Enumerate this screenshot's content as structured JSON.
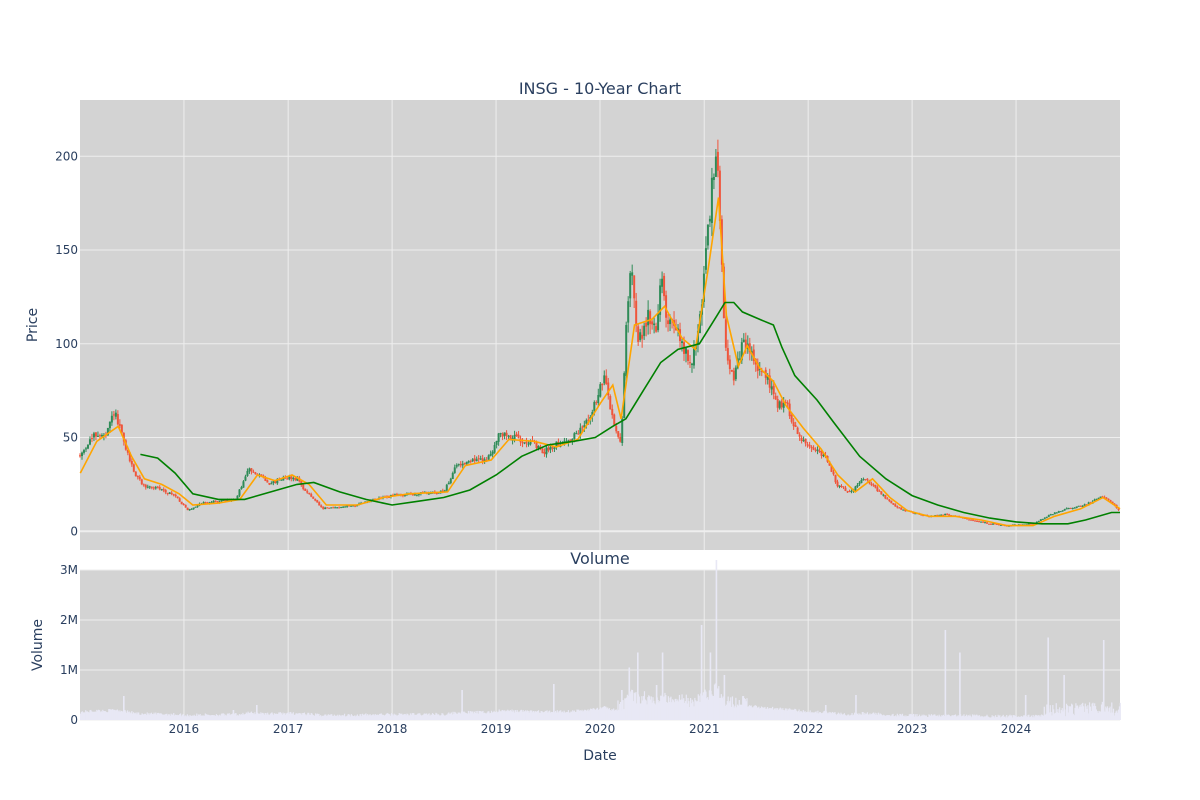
{
  "chart_data": [
    {
      "type": "candlestick",
      "title": "INSG - 10-Year Chart",
      "ylabel": "Price",
      "ylim": [
        -10,
        230
      ],
      "yticks": [
        0,
        50,
        100,
        150,
        200
      ],
      "x_range": [
        "2015-01-01",
        "2024-12-31"
      ],
      "grid": true,
      "colors": {
        "up": "#2e8b57",
        "down": "#ef553b",
        "ma_short": "#ffa500",
        "ma_long": "#008000",
        "plot_bg": "#d3d3d3",
        "grid": "#eeeeee"
      },
      "price_points": [
        [
          "2015-01-02",
          40
        ],
        [
          "2015-02-01",
          48
        ],
        [
          "2015-03-01",
          52
        ],
        [
          "2015-04-01",
          50
        ],
        [
          "2015-05-01",
          64
        ],
        [
          "2015-05-20",
          55
        ],
        [
          "2015-06-15",
          42
        ],
        [
          "2015-07-15",
          30
        ],
        [
          "2015-08-15",
          24
        ],
        [
          "2015-10-01",
          23
        ],
        [
          "2015-12-01",
          19
        ],
        [
          "2016-01-15",
          11
        ],
        [
          "2016-03-01",
          15
        ],
        [
          "2016-05-01",
          16
        ],
        [
          "2016-07-01",
          17
        ],
        [
          "2016-08-15",
          33
        ],
        [
          "2016-09-15",
          31
        ],
        [
          "2016-11-01",
          25
        ],
        [
          "2016-12-15",
          29
        ],
        [
          "2017-02-01",
          28
        ],
        [
          "2017-03-01",
          22
        ],
        [
          "2017-05-01",
          12
        ],
        [
          "2017-07-01",
          13
        ],
        [
          "2017-09-01",
          14
        ],
        [
          "2017-11-01",
          17
        ],
        [
          "2018-01-01",
          19
        ],
        [
          "2018-04-01",
          20
        ],
        [
          "2018-07-01",
          21
        ],
        [
          "2018-08-15",
          35
        ],
        [
          "2018-10-01",
          38
        ],
        [
          "2018-12-01",
          38
        ],
        [
          "2019-01-15",
          52
        ],
        [
          "2019-03-01",
          50
        ],
        [
          "2019-05-01",
          48
        ],
        [
          "2019-06-15",
          42
        ],
        [
          "2019-08-01",
          47
        ],
        [
          "2019-09-15",
          48
        ],
        [
          "2019-11-01",
          55
        ],
        [
          "2019-12-15",
          68
        ],
        [
          "2020-01-15",
          82
        ],
        [
          "2020-02-15",
          60
        ],
        [
          "2020-03-15",
          45
        ],
        [
          "2020-04-01",
          110
        ],
        [
          "2020-04-20",
          140
        ],
        [
          "2020-05-15",
          100
        ],
        [
          "2020-06-15",
          115
        ],
        [
          "2020-07-15",
          108
        ],
        [
          "2020-08-05",
          140
        ],
        [
          "2020-08-20",
          115
        ],
        [
          "2020-10-01",
          105
        ],
        [
          "2020-11-15",
          88
        ],
        [
          "2020-12-15",
          110
        ],
        [
          "2021-01-15",
          160
        ],
        [
          "2021-02-10",
          205
        ],
        [
          "2021-02-25",
          170
        ],
        [
          "2021-03-15",
          100
        ],
        [
          "2021-04-15",
          80
        ],
        [
          "2021-05-15",
          100
        ],
        [
          "2021-06-15",
          95
        ],
        [
          "2021-07-15",
          85
        ],
        [
          "2021-08-15",
          80
        ],
        [
          "2021-09-15",
          68
        ],
        [
          "2021-10-15",
          68
        ],
        [
          "2021-12-01",
          50
        ],
        [
          "2022-01-15",
          45
        ],
        [
          "2022-03-01",
          40
        ],
        [
          "2022-04-15",
          24
        ],
        [
          "2022-06-01",
          21
        ],
        [
          "2022-07-15",
          29
        ],
        [
          "2022-09-01",
          22
        ],
        [
          "2022-11-01",
          13
        ],
        [
          "2023-01-01",
          10
        ],
        [
          "2023-03-01",
          8
        ],
        [
          "2023-05-01",
          9
        ],
        [
          "2023-07-01",
          7
        ],
        [
          "2023-10-01",
          4
        ],
        [
          "2023-12-01",
          3
        ],
        [
          "2024-03-01",
          4
        ],
        [
          "2024-05-01",
          9
        ],
        [
          "2024-07-01",
          12
        ],
        [
          "2024-09-01",
          14
        ],
        [
          "2024-11-01",
          19
        ],
        [
          "2024-12-31",
          11
        ]
      ],
      "ma_short": [
        [
          "2015-01-02",
          31
        ],
        [
          "2015-03-01",
          48
        ],
        [
          "2015-05-15",
          56
        ],
        [
          "2015-07-01",
          40
        ],
        [
          "2015-08-15",
          28
        ],
        [
          "2015-10-15",
          25
        ],
        [
          "2015-12-15",
          20
        ],
        [
          "2016-02-01",
          14
        ],
        [
          "2016-05-01",
          15
        ],
        [
          "2016-07-15",
          17
        ],
        [
          "2016-09-15",
          30
        ],
        [
          "2016-11-15",
          27
        ],
        [
          "2017-01-15",
          30
        ],
        [
          "2017-03-15",
          25
        ],
        [
          "2017-05-15",
          14
        ],
        [
          "2017-09-01",
          14
        ],
        [
          "2017-12-01",
          18
        ],
        [
          "2018-03-01",
          20
        ],
        [
          "2018-07-15",
          21
        ],
        [
          "2018-09-15",
          35
        ],
        [
          "2018-12-15",
          38
        ],
        [
          "2019-02-15",
          49
        ],
        [
          "2019-05-15",
          48
        ],
        [
          "2019-08-01",
          45
        ],
        [
          "2019-10-15",
          49
        ],
        [
          "2020-01-01",
          68
        ],
        [
          "2020-02-15",
          78
        ],
        [
          "2020-03-15",
          60
        ],
        [
          "2020-05-01",
          110
        ],
        [
          "2020-07-01",
          113
        ],
        [
          "2020-08-15",
          120
        ],
        [
          "2020-10-15",
          103
        ],
        [
          "2020-12-01",
          97
        ],
        [
          "2021-01-15",
          140
        ],
        [
          "2021-02-20",
          178
        ],
        [
          "2021-03-20",
          115
        ],
        [
          "2021-05-01",
          88
        ],
        [
          "2021-06-01",
          99
        ],
        [
          "2021-07-15",
          87
        ],
        [
          "2021-09-01",
          80
        ],
        [
          "2021-10-15",
          67
        ],
        [
          "2021-12-15",
          55
        ],
        [
          "2022-02-15",
          44
        ],
        [
          "2022-04-15",
          30
        ],
        [
          "2022-06-15",
          21
        ],
        [
          "2022-08-15",
          28
        ],
        [
          "2022-10-15",
          18
        ],
        [
          "2022-12-15",
          11
        ],
        [
          "2023-03-01",
          8
        ],
        [
          "2023-06-01",
          8
        ],
        [
          "2023-09-01",
          6
        ],
        [
          "2023-12-01",
          3
        ],
        [
          "2024-03-01",
          3
        ],
        [
          "2024-05-15",
          8
        ],
        [
          "2024-08-15",
          12
        ],
        [
          "2024-11-01",
          18
        ],
        [
          "2024-12-31",
          12
        ]
      ],
      "ma_long": [
        [
          "2015-08-01",
          41
        ],
        [
          "2015-10-01",
          39
        ],
        [
          "2015-12-01",
          31
        ],
        [
          "2016-02-01",
          20
        ],
        [
          "2016-05-01",
          17
        ],
        [
          "2016-08-01",
          17
        ],
        [
          "2016-11-01",
          21
        ],
        [
          "2017-02-01",
          25
        ],
        [
          "2017-04-01",
          26
        ],
        [
          "2017-07-01",
          21
        ],
        [
          "2017-10-01",
          17
        ],
        [
          "2018-01-01",
          14
        ],
        [
          "2018-04-01",
          16
        ],
        [
          "2018-07-01",
          18
        ],
        [
          "2018-10-01",
          22
        ],
        [
          "2019-01-01",
          30
        ],
        [
          "2019-04-01",
          40
        ],
        [
          "2019-07-01",
          46
        ],
        [
          "2019-10-01",
          48
        ],
        [
          "2019-12-15",
          50
        ],
        [
          "2020-02-15",
          56
        ],
        [
          "2020-04-01",
          60
        ],
        [
          "2020-06-01",
          75
        ],
        [
          "2020-08-01",
          90
        ],
        [
          "2020-10-01",
          97
        ],
        [
          "2020-12-15",
          100
        ],
        [
          "2021-02-15",
          115
        ],
        [
          "2021-03-15",
          122
        ],
        [
          "2021-04-15",
          122
        ],
        [
          "2021-05-15",
          117
        ],
        [
          "2021-07-15",
          113
        ],
        [
          "2021-09-01",
          110
        ],
        [
          "2021-10-01",
          98
        ],
        [
          "2021-11-15",
          83
        ],
        [
          "2022-02-01",
          70
        ],
        [
          "2022-04-01",
          58
        ],
        [
          "2022-07-01",
          40
        ],
        [
          "2022-10-01",
          28
        ],
        [
          "2023-01-01",
          19
        ],
        [
          "2023-04-01",
          14
        ],
        [
          "2023-07-01",
          10
        ],
        [
          "2023-10-01",
          7
        ],
        [
          "2024-01-01",
          5
        ],
        [
          "2024-04-01",
          4
        ],
        [
          "2024-07-01",
          4
        ],
        [
          "2024-09-01",
          6
        ],
        [
          "2024-12-01",
          10
        ],
        [
          "2024-12-31",
          10
        ]
      ]
    },
    {
      "type": "bar",
      "title": "Volume",
      "ylabel": "Volume",
      "xlabel": "Date",
      "ylim": [
        0,
        3000000
      ],
      "yticks": [
        0,
        1000000,
        2000000,
        3000000
      ],
      "ytick_labels": [
        "0",
        "1M",
        "2M",
        "3M"
      ],
      "xticks": [
        "2016",
        "2017",
        "2018",
        "2019",
        "2020",
        "2021",
        "2022",
        "2023",
        "2024"
      ],
      "bar_color": "#e8e8f5",
      "spikes": [
        [
          "2015-06-01",
          480000
        ],
        [
          "2016-06-20",
          200000
        ],
        [
          "2016-09-10",
          300000
        ],
        [
          "2018-09-01",
          600000
        ],
        [
          "2019-07-20",
          720000
        ],
        [
          "2020-03-15",
          600000
        ],
        [
          "2020-04-10",
          1050000
        ],
        [
          "2020-05-10",
          1350000
        ],
        [
          "2020-07-15",
          700000
        ],
        [
          "2020-08-05",
          1350000
        ],
        [
          "2020-12-20",
          1900000
        ],
        [
          "2021-01-20",
          1350000
        ],
        [
          "2021-02-10",
          3200000
        ],
        [
          "2021-03-10",
          900000
        ],
        [
          "2022-03-01",
          300000
        ],
        [
          "2022-06-15",
          500000
        ],
        [
          "2023-04-25",
          1800000
        ],
        [
          "2023-06-15",
          1350000
        ],
        [
          "2024-02-01",
          500000
        ],
        [
          "2024-04-20",
          1650000
        ],
        [
          "2024-06-15",
          900000
        ],
        [
          "2024-11-01",
          1600000
        ]
      ]
    }
  ]
}
